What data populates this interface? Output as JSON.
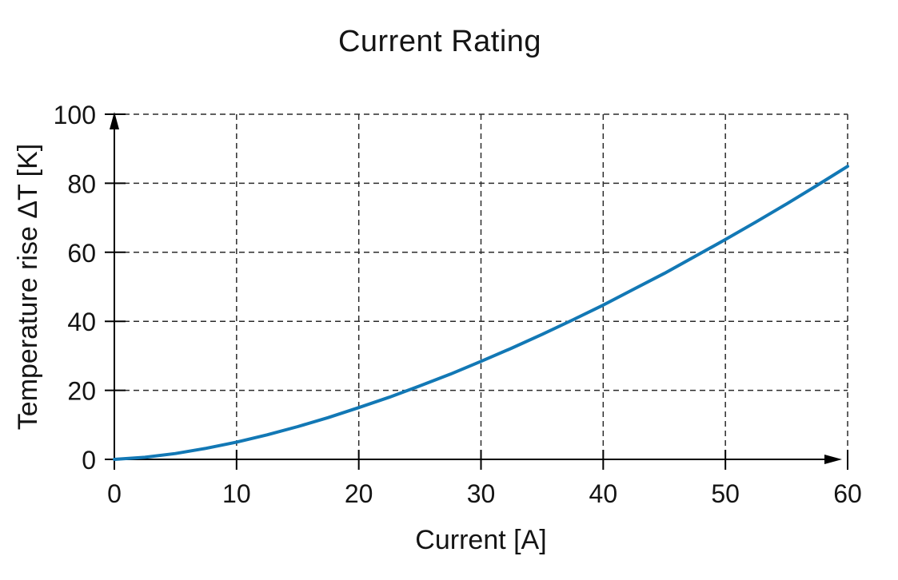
{
  "page": {
    "background": "#ffffff"
  },
  "chart_data": {
    "type": "line",
    "title": "Current Rating",
    "xlabel": "Current [A]",
    "ylabel": "Temperature rise ΔT [K]",
    "xlim": [
      0,
      60
    ],
    "ylim": [
      0,
      100
    ],
    "x_ticks": [
      0,
      10,
      20,
      30,
      40,
      50,
      60
    ],
    "y_ticks": [
      0,
      20,
      40,
      60,
      80,
      100
    ],
    "grid": {
      "shown": true,
      "style": "dashed",
      "color": "#2b2b2b"
    },
    "legend_position": "none",
    "axis_color": "#000000",
    "axis_arrowheads": true,
    "series": [
      {
        "name": "Temperature rise vs current",
        "color": "#1278b5",
        "x": [
          0,
          2.5,
          5,
          7.5,
          10,
          12.5,
          15,
          17.5,
          20,
          22.5,
          25,
          27.5,
          30,
          32.5,
          35,
          37.5,
          40,
          42.5,
          45,
          47.5,
          50,
          52.5,
          55,
          57.5,
          60
        ],
        "y": [
          0,
          0.6,
          1.7,
          3.2,
          5.0,
          7.1,
          9.5,
          12.1,
          15.0,
          18.0,
          21.3,
          24.7,
          28.4,
          32.2,
          36.2,
          40.4,
          44.7,
          49.3,
          53.9,
          58.8,
          63.7,
          68.8,
          74.0,
          79.4,
          84.9
        ]
      }
    ],
    "key_points": {
      "x": [
        0,
        10,
        20,
        30,
        40,
        50,
        60
      ],
      "y": [
        0,
        5,
        15,
        28,
        45,
        64,
        85
      ]
    }
  }
}
